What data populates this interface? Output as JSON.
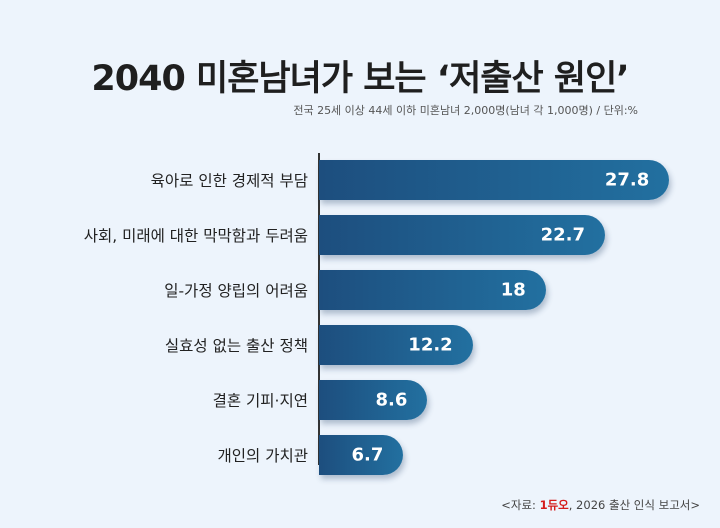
{
  "chart_data": {
    "type": "bar",
    "orientation": "horizontal",
    "title": "2040 미혼남녀가 보는 ‘저출산 원인’",
    "subtitle": "전국 25세 이상 44세 이하 미혼남녀 2,000명(남녀 각 1,000명) / 단위:%",
    "categories": [
      "육아로 인한 경제적 부담",
      "사회, 미래에 대한 막막함과 두려움",
      "일-가정 양립의 어려움",
      "실효성 없는 출산 정책",
      "결혼 기피·지연",
      "개인의 가치관"
    ],
    "values": [
      27.8,
      22.7,
      18,
      12.2,
      8.6,
      6.7
    ],
    "xlim": [
      0,
      30
    ],
    "grid": false,
    "bar_color": "#1f5f8f"
  },
  "source": {
    "prefix": "<자료: ",
    "logo": "1듀오",
    "suffix": ", 2026 출산 인식 보고서>",
    "logo_color": "#d51c1c"
  }
}
